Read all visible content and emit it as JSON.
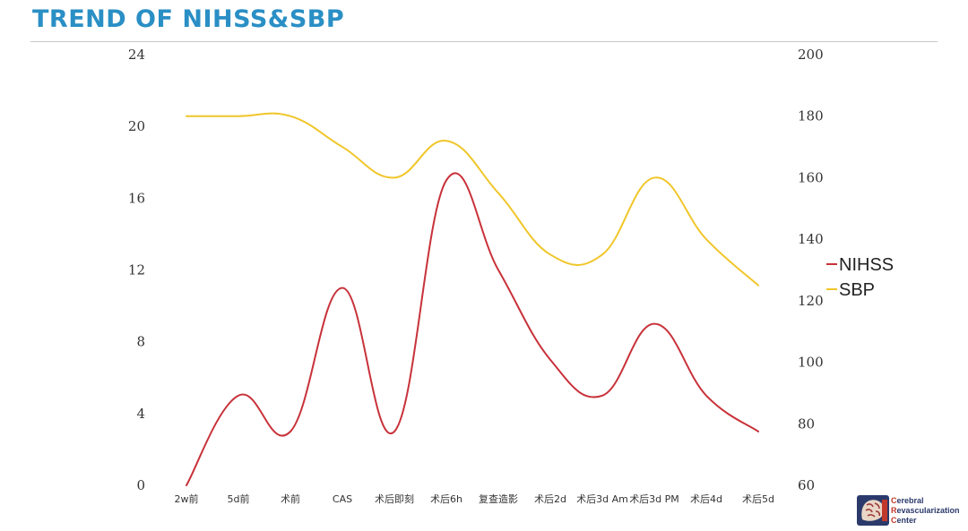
{
  "title": "TREND OF NIHSS&SBP",
  "chart_data": {
    "type": "line",
    "categories": [
      "2w前",
      "5d前",
      "术前",
      "CAS",
      "术后即刻",
      "术后6h",
      "复查造影",
      "术后2d",
      "术后3d Am",
      "术后3d PM",
      "术后4d",
      "术后5d"
    ],
    "series": [
      {
        "name": "NIHSS",
        "axis": "left",
        "color": "#c8323a",
        "values": [
          0,
          5,
          3,
          11,
          3,
          17,
          12,
          7,
          5,
          9,
          5,
          3
        ]
      },
      {
        "name": "SBP",
        "axis": "right",
        "color": "#f0c62a",
        "values": [
          180,
          180,
          180,
          170,
          160,
          172,
          155,
          135,
          135,
          160,
          140,
          125
        ]
      }
    ],
    "y_left": {
      "ylim": [
        0,
        24
      ],
      "ticks": [
        0,
        4,
        8,
        12,
        16,
        20,
        24
      ]
    },
    "y_right": {
      "ylim": [
        60,
        200
      ],
      "ticks": [
        60,
        80,
        100,
        120,
        140,
        160,
        180,
        200
      ]
    },
    "grid": false,
    "legend": "right"
  },
  "logo": {
    "lines": [
      "Cerebral",
      "Revascularization",
      "Center"
    ],
    "initials": [
      "C",
      "R",
      "C"
    ],
    "rest": [
      "erebral",
      "evascularization",
      "enter"
    ]
  }
}
